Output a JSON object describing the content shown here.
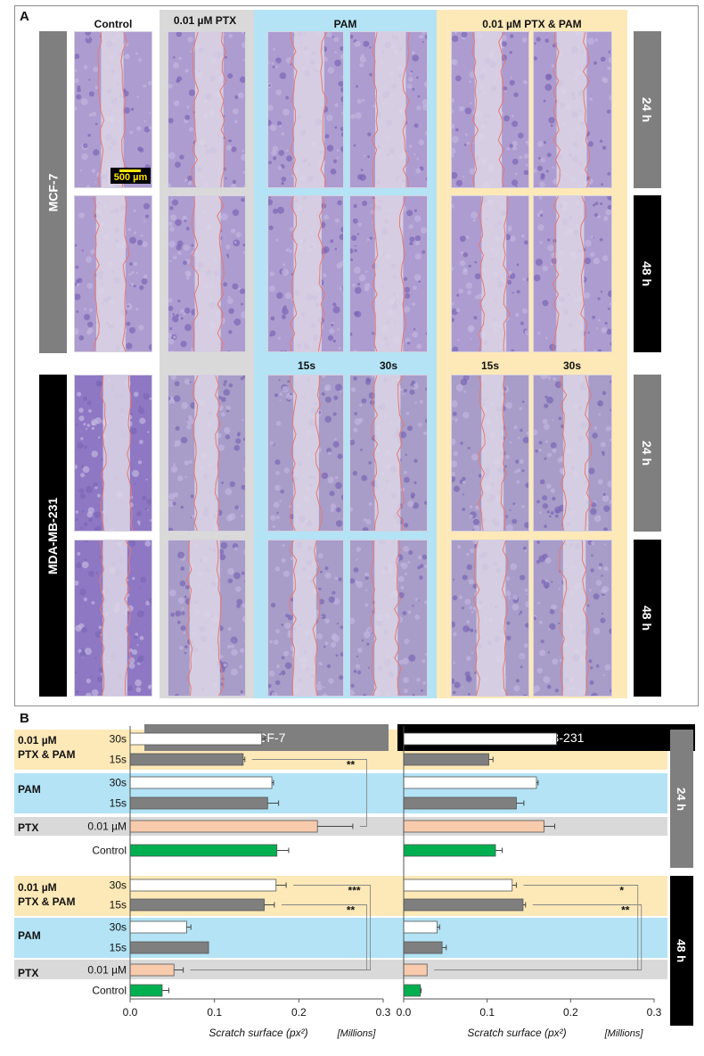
{
  "panel_a": {
    "letter": "A",
    "columns": [
      {
        "label": "Control"
      },
      {
        "label": "0.01 µM PTX"
      },
      {
        "label": "PAM"
      },
      {
        "label": "0.01 µM PTX & PAM"
      }
    ],
    "sub_labels": [
      "15s",
      "30s",
      "15s",
      "30s"
    ],
    "cell_lines": [
      "MCF-7",
      "MDA-MB-231"
    ],
    "times": [
      "24 h",
      "48 h",
      "24 h",
      "48 h"
    ],
    "scale_bar": "500 µm",
    "colors": {
      "ptx_bg": "#d9d9d9",
      "pam_bg": "#b3e3f5",
      "combo_bg": "#fde9b8",
      "mcf7_bar": "#7f7f7f",
      "mda_bar": "#000000",
      "tissue": "#ad9cd0",
      "scratch": "#ddd6e6",
      "edge": "#e47c70"
    }
  },
  "chart_data": {
    "type": "bar",
    "orientation": "horizontal",
    "panel_letter": "B",
    "x_axis_label": "Scratch surface (px²)",
    "x_units_label": "[Millions]",
    "xlim": [
      0,
      0.3
    ],
    "x_ticks": [
      "0.0",
      "0.1",
      "0.2",
      "0.3"
    ],
    "groups": [
      {
        "label": "0.01 µM PTX & PAM",
        "bg": "#fde9b8",
        "time": "24 h"
      },
      {
        "label": "PAM",
        "bg": "#b3e3f5",
        "time": "24 h"
      },
      {
        "label": "PTX",
        "bg": "#d9d9d9",
        "time": "24 h"
      },
      {
        "label": "0.01 µM PTX & PAM",
        "bg": "#fde9b8",
        "time": "48 h"
      },
      {
        "label": "PAM",
        "bg": "#b3e3f5",
        "time": "48 h"
      },
      {
        "label": "PTX",
        "bg": "#d9d9d9",
        "time": "48 h"
      }
    ],
    "time_labels": [
      "24 h",
      "48 h"
    ],
    "colors": {
      "30s": "#ffffff",
      "15s": "#7f7f7f",
      "ptx": "#f8cbad",
      "control": "#00b050"
    },
    "panels": [
      {
        "cell_line": "MCF-7",
        "header_color": "#7f7f7f",
        "rows": [
          {
            "label": "30s",
            "group": "0.01 µM PTX & PAM",
            "time": "24 h",
            "value": 0.156,
            "error": 0.004,
            "color": "#ffffff"
          },
          {
            "label": "15s",
            "group": "0.01 µM PTX & PAM",
            "time": "24 h",
            "value": 0.134,
            "error": 0.002,
            "color": "#7f7f7f"
          },
          {
            "label": "30s",
            "group": "PAM",
            "time": "24 h",
            "value": 0.168,
            "error": 0.002,
            "color": "#ffffff"
          },
          {
            "label": "15s",
            "group": "PAM",
            "time": "24 h",
            "value": 0.163,
            "error": 0.013,
            "color": "#7f7f7f"
          },
          {
            "label": "0.01 µM",
            "group": "PTX",
            "time": "24 h",
            "value": 0.222,
            "error": 0.042,
            "color": "#f8cbad"
          },
          {
            "label": "Control",
            "group": "",
            "time": "24 h",
            "value": 0.174,
            "error": 0.014,
            "color": "#00b050"
          },
          {
            "label": "30s",
            "group": "0.01 µM PTX & PAM",
            "time": "48 h",
            "value": 0.173,
            "error": 0.012,
            "color": "#ffffff"
          },
          {
            "label": "15s",
            "group": "0.01 µM PTX & PAM",
            "time": "48 h",
            "value": 0.159,
            "error": 0.012,
            "color": "#7f7f7f"
          },
          {
            "label": "30s",
            "group": "PAM",
            "time": "48 h",
            "value": 0.067,
            "error": 0.005,
            "color": "#ffffff"
          },
          {
            "label": "15s",
            "group": "PAM",
            "time": "48 h",
            "value": 0.093,
            "error": 0.0,
            "color": "#7f7f7f"
          },
          {
            "label": "0.01 µM",
            "group": "PTX",
            "time": "48 h",
            "value": 0.052,
            "error": 0.011,
            "color": "#f8cbad"
          },
          {
            "label": "Control",
            "group": "",
            "time": "48 h",
            "value": 0.038,
            "error": 0.008,
            "color": "#00b050"
          }
        ],
        "significance": [
          {
            "label": "**",
            "from_row": 4,
            "to_row": 1
          },
          {
            "label": "***",
            "from_row": 10,
            "to_row": 6
          },
          {
            "label": "**",
            "from_row": 10,
            "to_row": 7
          }
        ]
      },
      {
        "cell_line": "MDA-MB-231",
        "header_color": "#000000",
        "rows": [
          {
            "label": "30s",
            "group": "0.01 µM PTX & PAM",
            "time": "24 h",
            "value": 0.183,
            "error": 0.0,
            "color": "#ffffff"
          },
          {
            "label": "15s",
            "group": "0.01 µM PTX & PAM",
            "time": "24 h",
            "value": 0.102,
            "error": 0.005,
            "color": "#7f7f7f"
          },
          {
            "label": "30s",
            "group": "PAM",
            "time": "24 h",
            "value": 0.159,
            "error": 0.002,
            "color": "#ffffff"
          },
          {
            "label": "15s",
            "group": "PAM",
            "time": "24 h",
            "value": 0.135,
            "error": 0.009,
            "color": "#7f7f7f"
          },
          {
            "label": "0.01 µM",
            "group": "PTX",
            "time": "24 h",
            "value": 0.168,
            "error": 0.013,
            "color": "#f8cbad"
          },
          {
            "label": "Control",
            "group": "",
            "time": "24 h",
            "value": 0.11,
            "error": 0.008,
            "color": "#00b050"
          },
          {
            "label": "30s",
            "group": "0.01 µM PTX & PAM",
            "time": "48 h",
            "value": 0.13,
            "error": 0.005,
            "color": "#ffffff"
          },
          {
            "label": "15s",
            "group": "0.01 µM PTX & PAM",
            "time": "48 h",
            "value": 0.143,
            "error": 0.003,
            "color": "#7f7f7f"
          },
          {
            "label": "30s",
            "group": "PAM",
            "time": "48 h",
            "value": 0.04,
            "error": 0.003,
            "color": "#ffffff"
          },
          {
            "label": "15s",
            "group": "PAM",
            "time": "48 h",
            "value": 0.046,
            "error": 0.005,
            "color": "#7f7f7f"
          },
          {
            "label": "0.01 µM",
            "group": "PTX",
            "time": "48 h",
            "value": 0.028,
            "error": 0.0,
            "color": "#f8cbad"
          },
          {
            "label": "Control",
            "group": "",
            "time": "48 h",
            "value": 0.02,
            "error": 0.001,
            "color": "#00b050"
          }
        ],
        "significance": [
          {
            "label": "*",
            "from_row": 10,
            "to_row": 6
          },
          {
            "label": "**",
            "from_row": 10,
            "to_row": 7
          }
        ]
      }
    ]
  }
}
